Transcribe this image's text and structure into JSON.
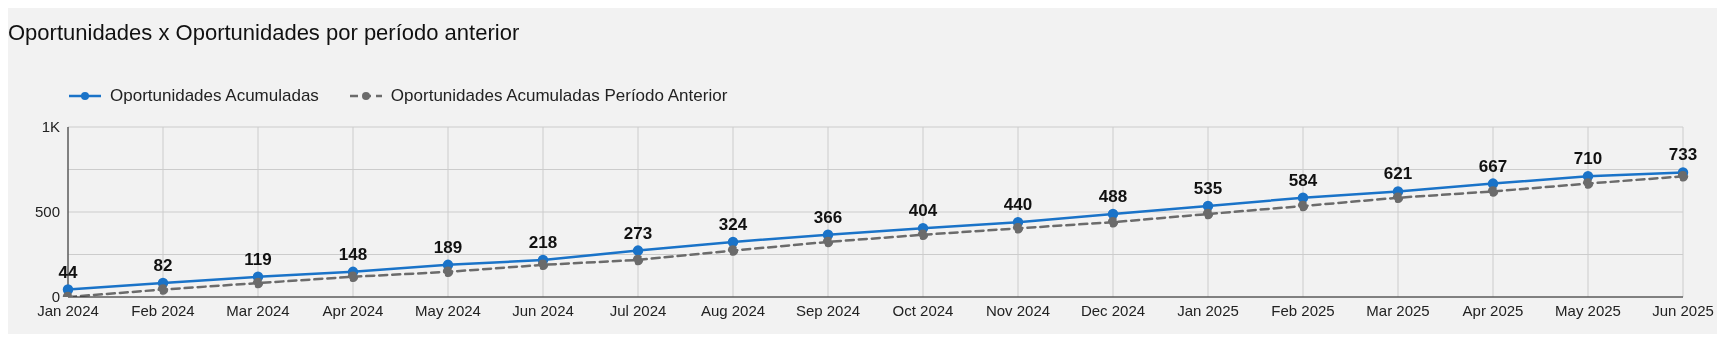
{
  "chart_data": {
    "type": "line",
    "title": "Oportunidades x Oportunidades por período anterior",
    "categories": [
      "Jan 2024",
      "Feb 2024",
      "Mar 2024",
      "Apr 2024",
      "May 2024",
      "Jun 2024",
      "Jul 2024",
      "Aug 2024",
      "Sep 2024",
      "Oct 2024",
      "Nov 2024",
      "Dec 2024",
      "Jan 2025",
      "Feb 2025",
      "Mar 2025",
      "Apr 2025",
      "May 2025",
      "Jun 2025"
    ],
    "series": [
      {
        "name": "Oportunidades Acumuladas",
        "color": "#1a73c8",
        "line_style": "solid",
        "values": [
          44,
          82,
          119,
          148,
          189,
          218,
          273,
          324,
          366,
          404,
          440,
          488,
          535,
          584,
          621,
          667,
          710,
          733
        ],
        "value_labels": [
          "44",
          "82",
          "119",
          "148",
          "189",
          "218",
          "273",
          "324",
          "366",
          "404",
          "440",
          "488",
          "535",
          "584",
          "621",
          "667",
          "710",
          "733"
        ]
      },
      {
        "name": "Oportunidades Acumuladas Período Anterior",
        "color": "#6b6b6b",
        "line_style": "dashed",
        "values": [
          0,
          44,
          82,
          119,
          148,
          189,
          218,
          273,
          324,
          366,
          404,
          440,
          488,
          535,
          584,
          621,
          667,
          710
        ]
      }
    ],
    "ylim": [
      0,
      1000
    ],
    "yticks": [
      0,
      {
        "value": 250,
        "label": null
      },
      500,
      {
        "value": 750,
        "label": null
      },
      {
        "value": 1000,
        "label": "1K"
      }
    ],
    "grid": true,
    "legend": "top left",
    "marker": "circle"
  }
}
